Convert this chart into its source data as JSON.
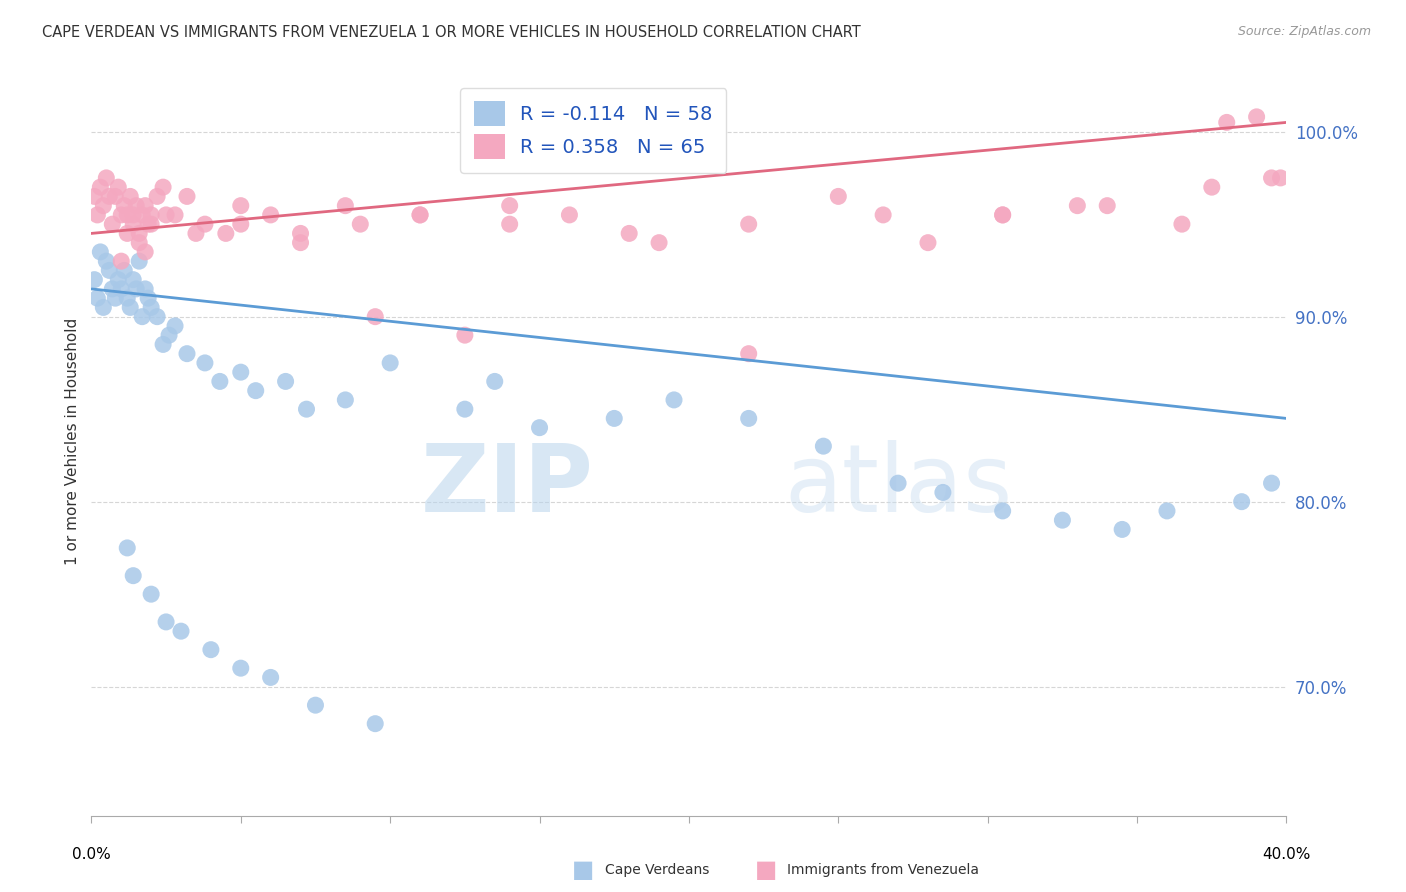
{
  "title": "CAPE VERDEAN VS IMMIGRANTS FROM VENEZUELA 1 OR MORE VEHICLES IN HOUSEHOLD CORRELATION CHART",
  "source": "Source: ZipAtlas.com",
  "ylabel": "1 or more Vehicles in Household",
  "xmin": 0.0,
  "xmax": 40.0,
  "ymin": 63.0,
  "ymax": 103.5,
  "yticks": [
    70.0,
    80.0,
    90.0,
    100.0
  ],
  "ytick_labels": [
    "70.0%",
    "80.0%",
    "90.0%",
    "100.0%"
  ],
  "blue_R": -0.114,
  "blue_N": 58,
  "pink_R": 0.358,
  "pink_N": 65,
  "blue_color": "#A8C8E8",
  "pink_color": "#F4A8C0",
  "blue_line_color": "#5B9BD5",
  "pink_line_color": "#E06880",
  "legend_label_blue": "Cape Verdeans",
  "legend_label_pink": "Immigrants from Venezuela",
  "watermark_zip": "ZIP",
  "watermark_atlas": "atlas",
  "blue_points_x": [
    0.1,
    0.2,
    0.3,
    0.4,
    0.5,
    0.6,
    0.7,
    0.8,
    0.9,
    1.0,
    1.1,
    1.2,
    1.3,
    1.4,
    1.5,
    1.6,
    1.7,
    1.8,
    1.9,
    2.0,
    2.2,
    2.4,
    2.6,
    2.8,
    3.2,
    3.8,
    4.3,
    5.0,
    5.5,
    6.5,
    7.2,
    8.5,
    10.0,
    12.5,
    13.5,
    15.0,
    17.5,
    19.5,
    22.0,
    24.5,
    27.0,
    28.5,
    30.5,
    32.5,
    34.5,
    36.0,
    38.5,
    39.5,
    1.2,
    1.4,
    2.0,
    2.5,
    3.0,
    4.0,
    5.0,
    6.0,
    7.5,
    9.5
  ],
  "blue_points_y": [
    92.0,
    91.0,
    93.5,
    90.5,
    93.0,
    92.5,
    91.5,
    91.0,
    92.0,
    91.5,
    92.5,
    91.0,
    90.5,
    92.0,
    91.5,
    93.0,
    90.0,
    91.5,
    91.0,
    90.5,
    90.0,
    88.5,
    89.0,
    89.5,
    88.0,
    87.5,
    86.5,
    87.0,
    86.0,
    86.5,
    85.0,
    85.5,
    87.5,
    85.0,
    86.5,
    84.0,
    84.5,
    85.5,
    84.5,
    83.0,
    81.0,
    80.5,
    79.5,
    79.0,
    78.5,
    79.5,
    80.0,
    81.0,
    77.5,
    76.0,
    75.0,
    73.5,
    73.0,
    72.0,
    71.0,
    70.5,
    69.0,
    68.0
  ],
  "pink_points_x": [
    0.1,
    0.2,
    0.3,
    0.4,
    0.5,
    0.6,
    0.7,
    0.8,
    0.9,
    1.0,
    1.1,
    1.2,
    1.3,
    1.4,
    1.5,
    1.6,
    1.7,
    1.8,
    1.9,
    2.0,
    2.2,
    2.4,
    2.8,
    3.2,
    3.8,
    4.5,
    5.0,
    6.0,
    7.0,
    8.5,
    9.5,
    11.0,
    12.5,
    14.0,
    16.0,
    19.0,
    22.0,
    25.0,
    28.0,
    30.5,
    33.0,
    36.5,
    38.0,
    39.0,
    1.0,
    1.2,
    1.4,
    1.6,
    1.8,
    2.0,
    2.5,
    3.5,
    5.0,
    7.0,
    9.0,
    11.0,
    14.0,
    18.0,
    22.0,
    26.5,
    30.5,
    34.0,
    37.5,
    39.5,
    39.8
  ],
  "pink_points_y": [
    96.5,
    95.5,
    97.0,
    96.0,
    97.5,
    96.5,
    95.0,
    96.5,
    97.0,
    95.5,
    96.0,
    95.5,
    96.5,
    95.0,
    96.0,
    94.5,
    95.5,
    96.0,
    95.0,
    95.5,
    96.5,
    97.0,
    95.5,
    96.5,
    95.0,
    94.5,
    96.0,
    95.5,
    94.0,
    96.0,
    90.0,
    95.5,
    89.0,
    96.0,
    95.5,
    94.0,
    88.0,
    96.5,
    94.0,
    95.5,
    96.0,
    95.0,
    100.5,
    100.8,
    93.0,
    94.5,
    95.5,
    94.0,
    93.5,
    95.0,
    95.5,
    94.5,
    95.0,
    94.5,
    95.0,
    95.5,
    95.0,
    94.5,
    95.0,
    95.5,
    95.5,
    96.0,
    97.0,
    97.5,
    97.5
  ]
}
